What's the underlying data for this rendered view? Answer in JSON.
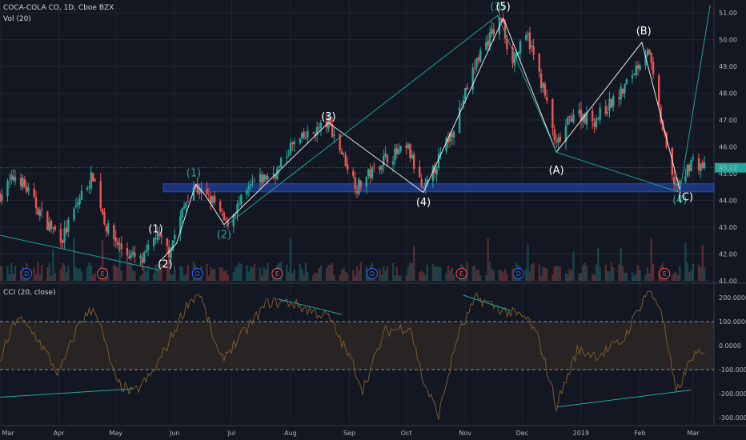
{
  "header": {
    "symbol": "COCA-COLA CO, 1D, Cboe BZX",
    "volume_label": "Vol (20)",
    "cci_label": "CCI (20, close)"
  },
  "colors": {
    "background": "#131722",
    "up": "#26a69a",
    "down": "#ef5350",
    "zone": "#1e3a8a",
    "wave_white": "#ffffff",
    "wave_green": "#26a69a",
    "cci_line": "#7a5a2e",
    "band": "#3a3024"
  },
  "chart_data": [
    {
      "type": "candlestick",
      "x_axis": {
        "range": [
          "2018-03-01",
          "2019-03-12"
        ]
      },
      "y_axis": {
        "range": [
          41.0,
          51.3
        ],
        "tick_labels": [
          "41.00",
          "42.00",
          "43.00",
          "44.00",
          "45.00",
          "46.00",
          "47.00",
          "48.00",
          "49.00",
          "50.00",
          "51.00"
        ],
        "last_price_label": "45.22"
      },
      "anchors": [
        [
          "2018-03-01",
          44.2
        ],
        [
          "2018-03-10",
          45.0
        ],
        [
          "2018-03-25",
          43.2
        ],
        [
          "2018-04-03",
          42.6
        ],
        [
          "2018-04-14",
          44.4
        ],
        [
          "2018-04-19",
          44.95
        ],
        [
          "2018-04-26",
          43.0
        ],
        [
          "2018-05-05",
          42.1
        ],
        [
          "2018-05-15",
          41.7
        ],
        [
          "2018-05-22",
          42.7
        ],
        [
          "2018-05-29",
          42.1
        ],
        [
          "2018-06-10",
          44.6
        ],
        [
          "2018-06-22",
          43.9
        ],
        [
          "2018-06-28",
          43.1
        ],
        [
          "2018-07-12",
          44.6
        ],
        [
          "2018-07-25",
          45.1
        ],
        [
          "2018-08-01",
          46.0
        ],
        [
          "2018-08-21",
          46.9
        ],
        [
          "2018-09-05",
          44.5
        ],
        [
          "2018-09-20",
          45.6
        ],
        [
          "2018-10-02",
          45.9
        ],
        [
          "2018-10-10",
          44.3
        ],
        [
          "2018-10-25",
          46.6
        ],
        [
          "2018-11-08",
          49.4
        ],
        [
          "2018-11-20",
          50.8
        ],
        [
          "2018-11-25",
          49.2
        ],
        [
          "2018-12-04",
          50.1
        ],
        [
          "2018-12-12",
          48.2
        ],
        [
          "2018-12-19",
          46.0
        ],
        [
          "2018-12-28",
          47.3
        ],
        [
          "2019-01-08",
          47.0
        ],
        [
          "2019-01-22",
          48.0
        ],
        [
          "2019-02-05",
          49.7
        ],
        [
          "2019-02-12",
          47.0
        ],
        [
          "2019-02-18",
          44.8
        ],
        [
          "2019-02-22",
          44.5
        ],
        [
          "2019-02-28",
          45.5
        ],
        [
          "2019-03-07",
          45.22
        ]
      ],
      "price_zone": {
        "from": "2018-05-26",
        "to": "2019-03-12",
        "low": 44.32,
        "high": 44.62
      },
      "wave_paths": [
        {
          "color": "white",
          "points": [
            [
              "2018-05-24",
              41.7
            ],
            [
              "2018-06-02",
              42.4
            ],
            [
              "2018-06-12",
              44.6
            ],
            [
              "2018-06-17",
              44.2
            ],
            [
              "2018-06-27",
              43.1
            ],
            [
              "2018-08-21",
              46.9
            ],
            [
              "2018-10-10",
              44.3
            ],
            [
              "2018-11-21",
              50.8
            ]
          ]
        },
        {
          "color": "white",
          "points": [
            [
              "2018-11-21",
              50.8
            ],
            [
              "2018-12-19",
              45.8
            ],
            [
              "2019-02-02",
              49.9
            ],
            [
              "2019-02-22",
              44.4
            ]
          ]
        },
        {
          "color": "green",
          "points": [
            [
              "2018-06-27",
              43.0
            ],
            [
              "2018-11-18",
              50.9
            ],
            [
              "2018-12-19",
              45.8
            ],
            [
              "2019-02-22",
              44.3
            ],
            [
              "2019-03-10",
              51.3
            ]
          ]
        },
        {
          "color": "green",
          "points": [
            [
              "2018-03-01",
              42.7
            ],
            [
              "2018-05-24",
              41.4
            ]
          ]
        }
      ],
      "wave_labels": [
        {
          "text": "(1)",
          "date": "2018-05-22",
          "price": 42.8,
          "color": "white"
        },
        {
          "text": "(2)",
          "date": "2018-05-27",
          "price": 41.5,
          "color": "white"
        },
        {
          "text": "(1)",
          "date": "2018-06-11",
          "price": 44.9,
          "color": "green"
        },
        {
          "text": "(2)",
          "date": "2018-06-27",
          "price": 42.6,
          "color": "green"
        },
        {
          "text": "(3)",
          "date": "2018-08-21",
          "price": 47.0,
          "color": "white"
        },
        {
          "text": "(4)",
          "date": "2018-10-10",
          "price": 43.8,
          "color": "white"
        },
        {
          "text": "(3)",
          "date": "2018-11-18",
          "price": 51.1,
          "color": "green"
        },
        {
          "text": "(5)",
          "date": "2018-11-21",
          "price": 51.1,
          "color": "white"
        },
        {
          "text": "(A)",
          "date": "2018-12-19",
          "price": 45.0,
          "color": "white"
        },
        {
          "text": "(B)",
          "date": "2019-02-03",
          "price": 50.2,
          "color": "white"
        },
        {
          "text": "(4)",
          "date": "2019-02-22",
          "price": 43.9,
          "color": "green"
        },
        {
          "text": "(C)",
          "date": "2019-02-25",
          "price": 44.0,
          "color": "white"
        }
      ]
    },
    {
      "type": "volume",
      "series_name": "Vol (20)",
      "events": [
        {
          "text": "D",
          "date": "2018-03-15",
          "color": "#2962ff"
        },
        {
          "text": "E",
          "date": "2018-04-24",
          "color": "#ef5350"
        },
        {
          "text": "D",
          "date": "2018-06-13",
          "color": "#2962ff"
        },
        {
          "text": "E",
          "date": "2018-07-25",
          "color": "#ef5350"
        },
        {
          "text": "D",
          "date": "2018-09-13",
          "color": "#2962ff"
        },
        {
          "text": "E",
          "date": "2018-10-30",
          "color": "#ef5350"
        },
        {
          "text": "D",
          "date": "2018-11-29",
          "color": "#2962ff"
        },
        {
          "text": "E",
          "date": "2019-02-14",
          "color": "#ef5350"
        }
      ]
    },
    {
      "type": "line",
      "series_name": "CCI (20, close)",
      "y_axis": {
        "range": [
          -320,
          250
        ],
        "tick_labels": [
          "200.0000",
          "100.0000",
          "0.0000",
          "-100.0000",
          "-200.0000",
          "-300.0000"
        ],
        "bands": [
          100,
          -100
        ]
      },
      "anchors": [
        [
          "2018-03-01",
          -60
        ],
        [
          "2018-03-10",
          120
        ],
        [
          "2018-03-20",
          40
        ],
        [
          "2018-04-01",
          -120
        ],
        [
          "2018-04-12",
          100
        ],
        [
          "2018-04-20",
          160
        ],
        [
          "2018-05-01",
          -150
        ],
        [
          "2018-05-10",
          -200
        ],
        [
          "2018-05-20",
          -120
        ],
        [
          "2018-05-28",
          0
        ],
        [
          "2018-06-08",
          180
        ],
        [
          "2018-06-14",
          220
        ],
        [
          "2018-06-25",
          -60
        ],
        [
          "2018-07-05",
          30
        ],
        [
          "2018-07-20",
          180
        ],
        [
          "2018-08-01",
          180
        ],
        [
          "2018-08-10",
          150
        ],
        [
          "2018-08-21",
          120
        ],
        [
          "2018-09-03",
          -80
        ],
        [
          "2018-09-08",
          -180
        ],
        [
          "2018-09-20",
          60
        ],
        [
          "2018-10-03",
          80
        ],
        [
          "2018-10-10",
          -150
        ],
        [
          "2018-10-18",
          -290
        ],
        [
          "2018-10-28",
          40
        ],
        [
          "2018-11-07",
          200
        ],
        [
          "2018-11-20",
          150
        ],
        [
          "2018-12-04",
          110
        ],
        [
          "2018-12-10",
          20
        ],
        [
          "2018-12-19",
          -250
        ],
        [
          "2018-12-30",
          -20
        ],
        [
          "2019-01-10",
          -40
        ],
        [
          "2019-01-23",
          20
        ],
        [
          "2019-02-05",
          230
        ],
        [
          "2019-02-12",
          160
        ],
        [
          "2019-02-20",
          -200
        ],
        [
          "2019-03-01",
          -40
        ],
        [
          "2019-03-07",
          -40
        ]
      ],
      "trend_lines": [
        [
          [
            "2018-03-01",
            -215
          ],
          [
            "2018-05-10",
            -180
          ]
        ],
        [
          [
            "2018-07-25",
            195
          ],
          [
            "2018-08-28",
            130
          ]
        ],
        [
          [
            "2018-10-31",
            210
          ],
          [
            "2018-11-25",
            145
          ]
        ],
        [
          [
            "2018-12-20",
            -255
          ],
          [
            "2019-02-28",
            -185
          ]
        ]
      ]
    }
  ],
  "x_axis": {
    "labels": [
      {
        "text": "Mar",
        "date": "2018-03-01"
      },
      {
        "text": "Apr",
        "date": "2018-04-01"
      },
      {
        "text": "May",
        "date": "2018-05-01"
      },
      {
        "text": "Jun",
        "date": "2018-06-01"
      },
      {
        "text": "Jul",
        "date": "2018-07-01"
      },
      {
        "text": "Aug",
        "date": "2018-08-01"
      },
      {
        "text": "Sep",
        "date": "2018-09-01"
      },
      {
        "text": "Oct",
        "date": "2018-10-01"
      },
      {
        "text": "Nov",
        "date": "2018-11-01"
      },
      {
        "text": "Dec",
        "date": "2018-12-01"
      },
      {
        "text": "2019",
        "date": "2019-01-01"
      },
      {
        "text": "Feb",
        "date": "2019-02-01"
      },
      {
        "text": "Mar",
        "date": "2019-03-01"
      }
    ]
  }
}
